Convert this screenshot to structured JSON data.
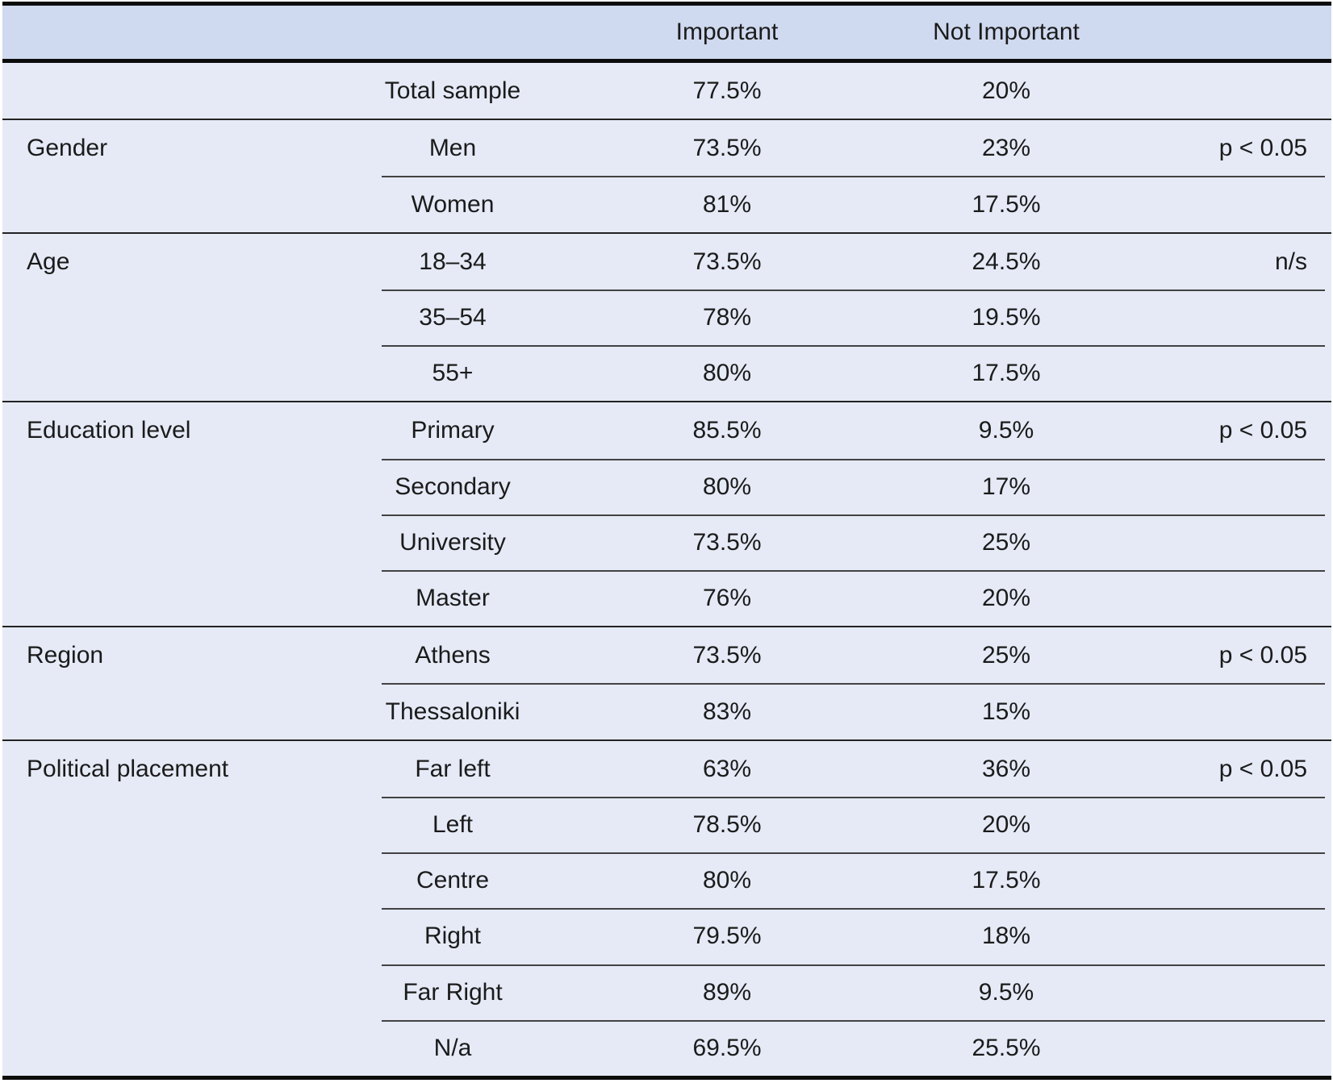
{
  "header": {
    "group_col": "",
    "subgroup_col": "",
    "important": "Important",
    "not_important": "Not Important",
    "significance_col": ""
  },
  "sections": [
    {
      "group": "",
      "rows": [
        {
          "label": "Total sample",
          "important": "77.5%",
          "not_important": "20%",
          "significance": ""
        }
      ]
    },
    {
      "group": "Gender",
      "rows": [
        {
          "label": "Men",
          "important": "73.5%",
          "not_important": "23%",
          "significance": "p < 0.05"
        },
        {
          "label": "Women",
          "important": "81%",
          "not_important": "17.5%",
          "significance": ""
        }
      ]
    },
    {
      "group": "Age",
      "rows": [
        {
          "label": "18–34",
          "important": "73.5%",
          "not_important": "24.5%",
          "significance": "n/s"
        },
        {
          "label": "35–54",
          "important": "78%",
          "not_important": "19.5%",
          "significance": ""
        },
        {
          "label": "55+",
          "important": "80%",
          "not_important": "17.5%",
          "significance": ""
        }
      ]
    },
    {
      "group": "Education level",
      "rows": [
        {
          "label": "Primary",
          "important": "85.5%",
          "not_important": "9.5%",
          "significance": "p < 0.05"
        },
        {
          "label": "Secondary",
          "important": "80%",
          "not_important": "17%",
          "significance": ""
        },
        {
          "label": "University",
          "important": "73.5%",
          "not_important": "25%",
          "significance": ""
        },
        {
          "label": "Master",
          "important": "76%",
          "not_important": "20%",
          "significance": ""
        }
      ]
    },
    {
      "group": "Region",
      "rows": [
        {
          "label": "Athens",
          "important": "73.5%",
          "not_important": "25%",
          "significance": "p < 0.05"
        },
        {
          "label": "Thessaloniki",
          "important": "83%",
          "not_important": "15%",
          "significance": ""
        }
      ]
    },
    {
      "group": "Political placement",
      "rows": [
        {
          "label": "Far left",
          "important": "63%",
          "not_important": "36%",
          "significance": "p < 0.05"
        },
        {
          "label": "Left",
          "important": "78.5%",
          "not_important": "20%",
          "significance": ""
        },
        {
          "label": "Centre",
          "important": "80%",
          "not_important": "17.5%",
          "significance": ""
        },
        {
          "label": "Right",
          "important": "79.5%",
          "not_important": "18%",
          "significance": ""
        },
        {
          "label": "Far Right",
          "important": "89%",
          "not_important": "9.5%",
          "significance": ""
        },
        {
          "label": "N/a",
          "important": "69.5%",
          "not_important": "25.5%",
          "significance": ""
        }
      ]
    }
  ],
  "colors": {
    "header_bg": "#cfd9ef",
    "body_bg": "#e5eaf6",
    "border_strong": "#0c0c0c",
    "line_section": "#232323",
    "line_sub": "#424242",
    "text": "#1b1b1b"
  }
}
